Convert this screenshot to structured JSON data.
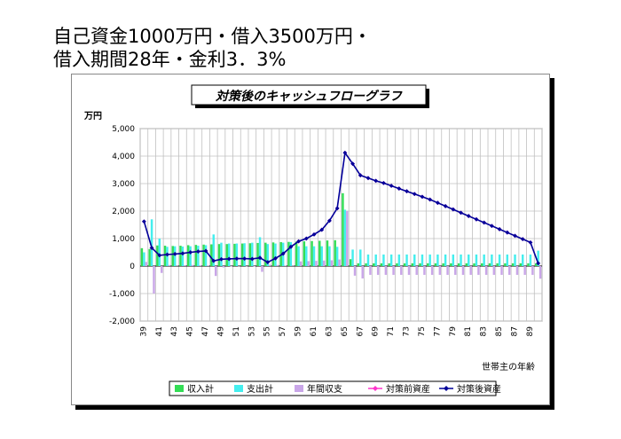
{
  "slide_title": {
    "line1": "自己資金1000万円・借入3500万円・",
    "line2": "借入期間28年・金利3．3%"
  },
  "chart_data": {
    "type": "bar",
    "title": "対策後のキャッシュフローグラフ",
    "ylabel": "万円",
    "xlabel": "世帯主の年齢",
    "ylim": [
      -2000,
      5000
    ],
    "yticks": [
      5000,
      4000,
      3000,
      2000,
      1000,
      0,
      -1000,
      -2000
    ],
    "ytick_labels": [
      "5,000",
      "4,000",
      "3,000",
      "2,000",
      "1,000",
      "0",
      "-1,000",
      "-2,000"
    ],
    "x": [
      39,
      40,
      41,
      42,
      43,
      44,
      45,
      46,
      47,
      48,
      49,
      50,
      51,
      52,
      53,
      54,
      55,
      56,
      57,
      58,
      59,
      60,
      61,
      62,
      63,
      64,
      65,
      66,
      67,
      68,
      69,
      70,
      71,
      72,
      73,
      74,
      75,
      76,
      77,
      78,
      79,
      80,
      81,
      82,
      83,
      84,
      85,
      86,
      87,
      88,
      89,
      90
    ],
    "xtick_labels": [
      "39",
      "41",
      "43",
      "45",
      "47",
      "49",
      "51",
      "53",
      "55",
      "57",
      "59",
      "61",
      "63",
      "65",
      "67",
      "69",
      "71",
      "73",
      "75",
      "77",
      "79",
      "81",
      "83",
      "85",
      "87",
      "89"
    ],
    "grid": true,
    "legend_position": "bottom",
    "colors": {
      "income": "#33dd55",
      "expense": "#44eeee",
      "annual": "#c9a6e8",
      "before_assets": "#ff33cc",
      "after_assets": "#000099"
    },
    "series": [
      {
        "name": "収入計",
        "kind": "bar",
        "values": [
          650,
          620,
          750,
          740,
          730,
          740,
          760,
          770,
          780,
          790,
          800,
          800,
          810,
          820,
          830,
          840,
          850,
          860,
          870,
          880,
          890,
          900,
          910,
          920,
          930,
          940,
          2650,
          250,
          100,
          100,
          100,
          100,
          100,
          100,
          100,
          100,
          100,
          100,
          100,
          100,
          100,
          100,
          100,
          100,
          100,
          100,
          100,
          100,
          100,
          100,
          100,
          100
        ]
      },
      {
        "name": "支出計",
        "kind": "bar",
        "values": [
          500,
          1700,
          1000,
          700,
          720,
          710,
          720,
          740,
          760,
          1150,
          850,
          820,
          820,
          830,
          850,
          1050,
          800,
          820,
          850,
          870,
          720,
          720,
          720,
          720,
          720,
          700,
          2050,
          600,
          600,
          420,
          420,
          420,
          420,
          420,
          420,
          420,
          420,
          420,
          420,
          420,
          420,
          420,
          420,
          420,
          420,
          420,
          420,
          420,
          420,
          420,
          420,
          560
        ]
      },
      {
        "name": "年間収支",
        "kind": "bar",
        "values": [
          150,
          -1000,
          -250,
          40,
          10,
          30,
          40,
          30,
          20,
          -360,
          -50,
          -20,
          -10,
          -10,
          -20,
          -210,
          50,
          40,
          20,
          10,
          170,
          180,
          190,
          200,
          210,
          240,
          2000,
          -350,
          -450,
          -320,
          -320,
          -320,
          -320,
          -320,
          -320,
          -320,
          -320,
          -320,
          -320,
          -320,
          -320,
          -320,
          -320,
          -320,
          -320,
          -320,
          -320,
          -320,
          -320,
          -320,
          -320,
          -460
        ]
      },
      {
        "name": "対策前資産",
        "kind": "line",
        "values": [
          1620,
          660,
          390,
          420,
          440,
          460,
          500,
          530,
          550,
          190,
          250,
          260,
          270,
          270,
          260,
          300,
          140,
          280,
          450,
          700,
          900,
          1000,
          1150,
          1320,
          1650,
          2100,
          4120,
          3720,
          3300,
          3200,
          3100,
          3020,
          2920,
          2820,
          2720,
          2620,
          2520,
          2420,
          2300,
          2180,
          2060,
          1940,
          1820,
          1700,
          1580,
          1460,
          1340,
          1220,
          1100,
          980,
          860,
          100
        ]
      },
      {
        "name": "対策後資産",
        "kind": "line",
        "values": [
          1620,
          660,
          390,
          420,
          440,
          460,
          500,
          530,
          550,
          190,
          250,
          260,
          270,
          270,
          260,
          300,
          140,
          280,
          450,
          700,
          900,
          1000,
          1150,
          1320,
          1650,
          2100,
          4120,
          3720,
          3300,
          3200,
          3100,
          3020,
          2920,
          2820,
          2720,
          2620,
          2520,
          2420,
          2300,
          2180,
          2060,
          1940,
          1820,
          1700,
          1580,
          1460,
          1340,
          1220,
          1100,
          980,
          860,
          100
        ]
      }
    ]
  }
}
